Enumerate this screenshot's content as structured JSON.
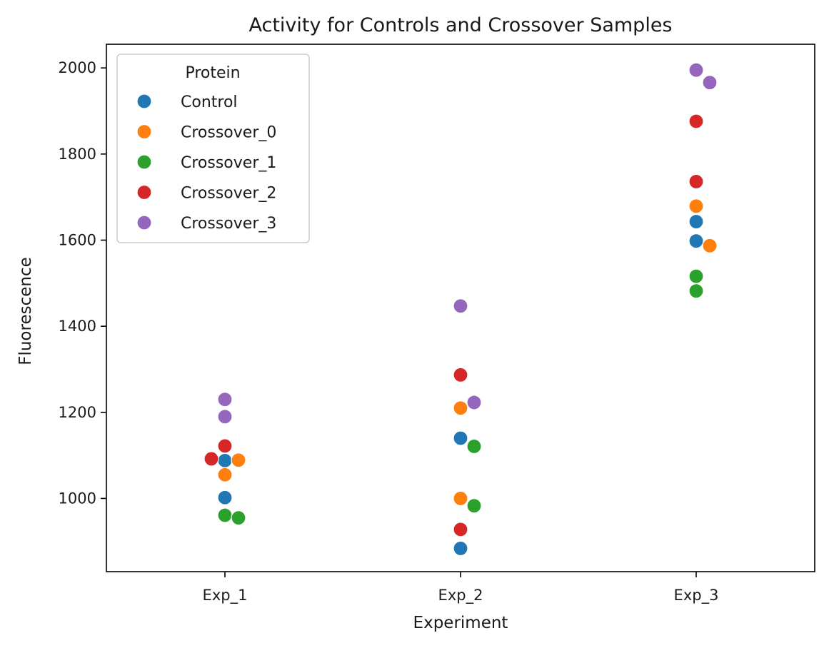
{
  "chart_data": {
    "type": "scatter",
    "title": "Activity for Controls and Crossover Samples",
    "xlabel": "Experiment",
    "ylabel": "Fluorescence",
    "categories": [
      "Exp_1",
      "Exp_2",
      "Exp_3"
    ],
    "ylim": [
      830,
      2055
    ],
    "yticks": [
      1000,
      1200,
      1400,
      1600,
      1800,
      2000
    ],
    "grid": false,
    "legend": {
      "title": "Protein",
      "placement": "top-left"
    },
    "series": [
      {
        "name": "Control",
        "color": "#1f77b4",
        "points": [
          {
            "category": "Exp_1",
            "y": 1088
          },
          {
            "category": "Exp_1",
            "y": 1002
          },
          {
            "category": "Exp_2",
            "y": 1140
          },
          {
            "category": "Exp_2",
            "y": 884
          },
          {
            "category": "Exp_3",
            "y": 1598
          },
          {
            "category": "Exp_3",
            "y": 1643
          }
        ]
      },
      {
        "name": "Crossover_0",
        "color": "#ff7f0e",
        "points": [
          {
            "category": "Exp_1",
            "y": 1089
          },
          {
            "category": "Exp_1",
            "y": 1055
          },
          {
            "category": "Exp_2",
            "y": 1000
          },
          {
            "category": "Exp_2",
            "y": 1210
          },
          {
            "category": "Exp_3",
            "y": 1679
          },
          {
            "category": "Exp_3",
            "y": 1587
          }
        ]
      },
      {
        "name": "Crossover_1",
        "color": "#2ca02c",
        "points": [
          {
            "category": "Exp_1",
            "y": 961
          },
          {
            "category": "Exp_1",
            "y": 955
          },
          {
            "category": "Exp_2",
            "y": 1121
          },
          {
            "category": "Exp_2",
            "y": 983
          },
          {
            "category": "Exp_3",
            "y": 1516
          },
          {
            "category": "Exp_3",
            "y": 1482
          }
        ]
      },
      {
        "name": "Crossover_2",
        "color": "#d62728",
        "points": [
          {
            "category": "Exp_1",
            "y": 1092
          },
          {
            "category": "Exp_1",
            "y": 1122
          },
          {
            "category": "Exp_2",
            "y": 1287
          },
          {
            "category": "Exp_2",
            "y": 928
          },
          {
            "category": "Exp_3",
            "y": 1876
          },
          {
            "category": "Exp_3",
            "y": 1736
          }
        ]
      },
      {
        "name": "Crossover_3",
        "color": "#9467bd",
        "points": [
          {
            "category": "Exp_1",
            "y": 1230
          },
          {
            "category": "Exp_1",
            "y": 1190
          },
          {
            "category": "Exp_2",
            "y": 1223
          },
          {
            "category": "Exp_2",
            "y": 1447
          },
          {
            "category": "Exp_3",
            "y": 1995
          },
          {
            "category": "Exp_3",
            "y": 1966
          }
        ]
      }
    ]
  }
}
